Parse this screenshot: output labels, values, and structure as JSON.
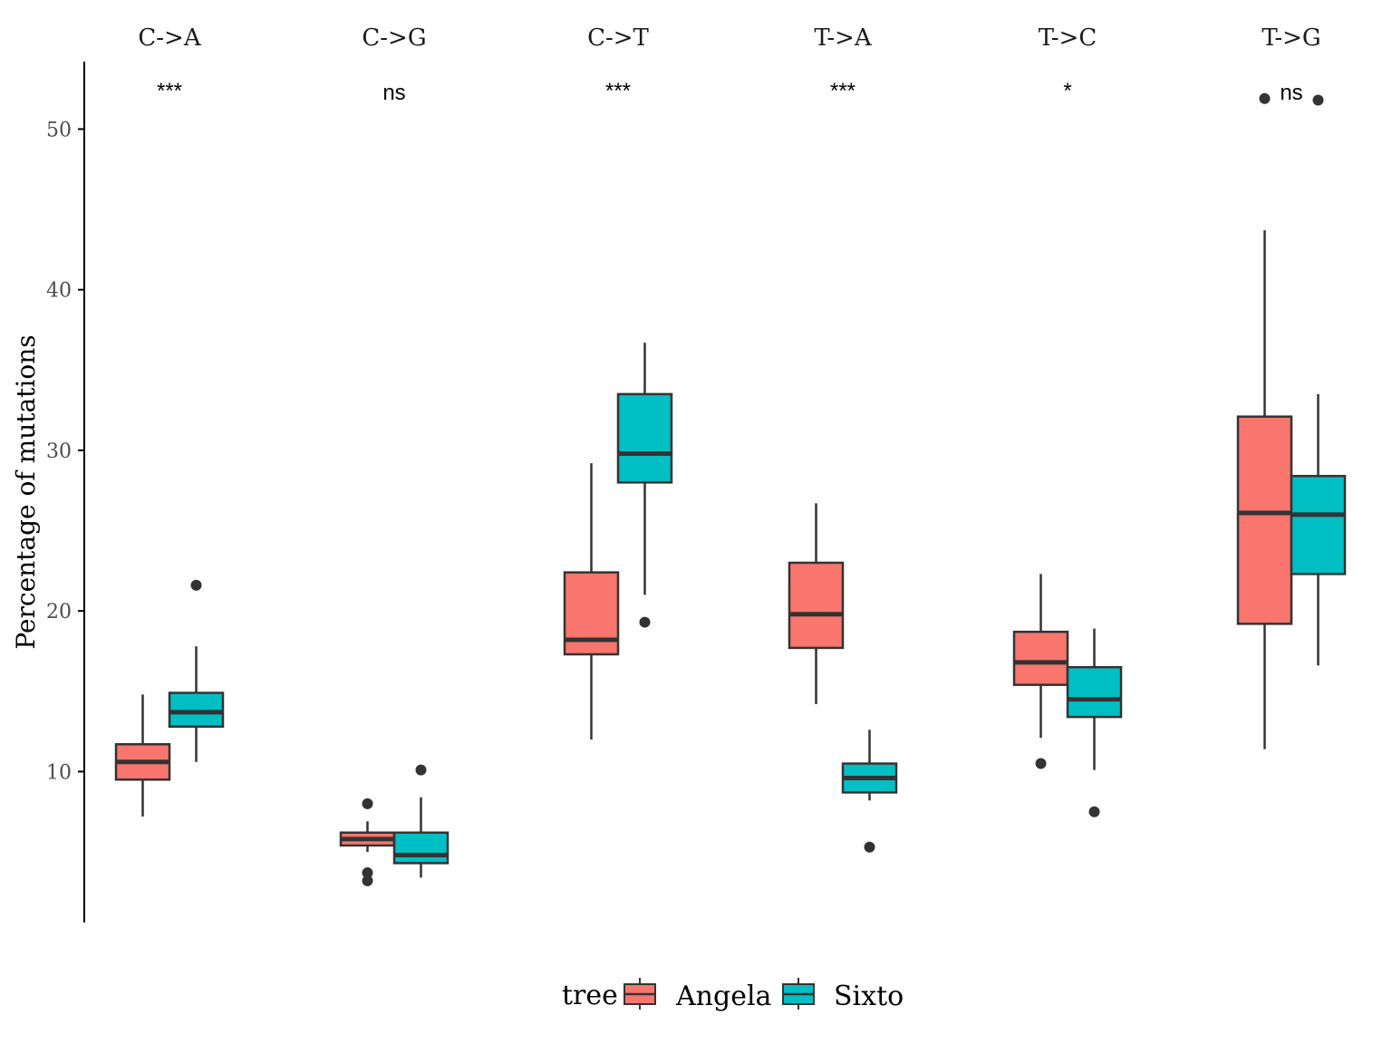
{
  "chart_data": {
    "type": "boxplot",
    "ylabel": "Percentage of mutations",
    "yticks": [
      10,
      20,
      30,
      40,
      50
    ],
    "ylim": [
      0.6,
      54.2
    ],
    "facets": [
      "C->A",
      "C->G",
      "C->T",
      "T->A",
      "T->C",
      "T->G"
    ],
    "significance": [
      "***",
      "ns",
      "***",
      "***",
      "*",
      "ns"
    ],
    "legend": {
      "title": "tree",
      "position": "bottom",
      "entries": [
        {
          "name": "Angela",
          "color": "#F8766D"
        },
        {
          "name": "Sixto",
          "color": "#00BFC4"
        }
      ]
    },
    "series": [
      {
        "name": "Angela",
        "color": "#F8766D",
        "boxes": [
          {
            "facet": "C->A",
            "low": 7.2,
            "q1": 9.5,
            "median": 10.6,
            "q3": 11.7,
            "high": 14.8,
            "outliers": []
          },
          {
            "facet": "C->G",
            "low": 5.0,
            "q1": 5.4,
            "median": 5.8,
            "q3": 6.2,
            "high": 6.9,
            "outliers": [
              8.0,
              3.7,
              3.2
            ]
          },
          {
            "facet": "C->T",
            "low": 12.0,
            "q1": 17.3,
            "median": 18.2,
            "q3": 22.4,
            "high": 29.2,
            "outliers": []
          },
          {
            "facet": "T->A",
            "low": 14.2,
            "q1": 17.7,
            "median": 19.8,
            "q3": 23.0,
            "high": 26.7,
            "outliers": []
          },
          {
            "facet": "T->C",
            "low": 12.1,
            "q1": 15.4,
            "median": 16.8,
            "q3": 18.7,
            "high": 22.3,
            "outliers": [
              10.5
            ]
          },
          {
            "facet": "T->G",
            "low": 11.4,
            "q1": 19.2,
            "median": 26.1,
            "q3": 32.1,
            "high": 43.7,
            "outliers": [
              51.9
            ]
          }
        ]
      },
      {
        "name": "Sixto",
        "color": "#00BFC4",
        "boxes": [
          {
            "facet": "C->A",
            "low": 10.6,
            "q1": 12.8,
            "median": 13.7,
            "q3": 14.9,
            "high": 17.8,
            "outliers": [
              21.6
            ]
          },
          {
            "facet": "C->G",
            "low": 3.4,
            "q1": 4.3,
            "median": 4.8,
            "q3": 6.2,
            "high": 8.4,
            "outliers": [
              10.1
            ]
          },
          {
            "facet": "C->T",
            "low": 21.0,
            "q1": 28.0,
            "median": 29.8,
            "q3": 33.5,
            "high": 36.7,
            "outliers": [
              19.3
            ]
          },
          {
            "facet": "T->A",
            "low": 8.2,
            "q1": 8.7,
            "median": 9.6,
            "q3": 10.5,
            "high": 12.6,
            "outliers": [
              5.3
            ]
          },
          {
            "facet": "T->C",
            "low": 10.1,
            "q1": 13.4,
            "median": 14.5,
            "q3": 16.5,
            "high": 18.9,
            "outliers": [
              7.5
            ]
          },
          {
            "facet": "T->G",
            "low": 16.6,
            "q1": 22.3,
            "median": 26.0,
            "q3": 28.4,
            "high": 33.5,
            "outliers": [
              51.8
            ]
          }
        ]
      }
    ]
  }
}
